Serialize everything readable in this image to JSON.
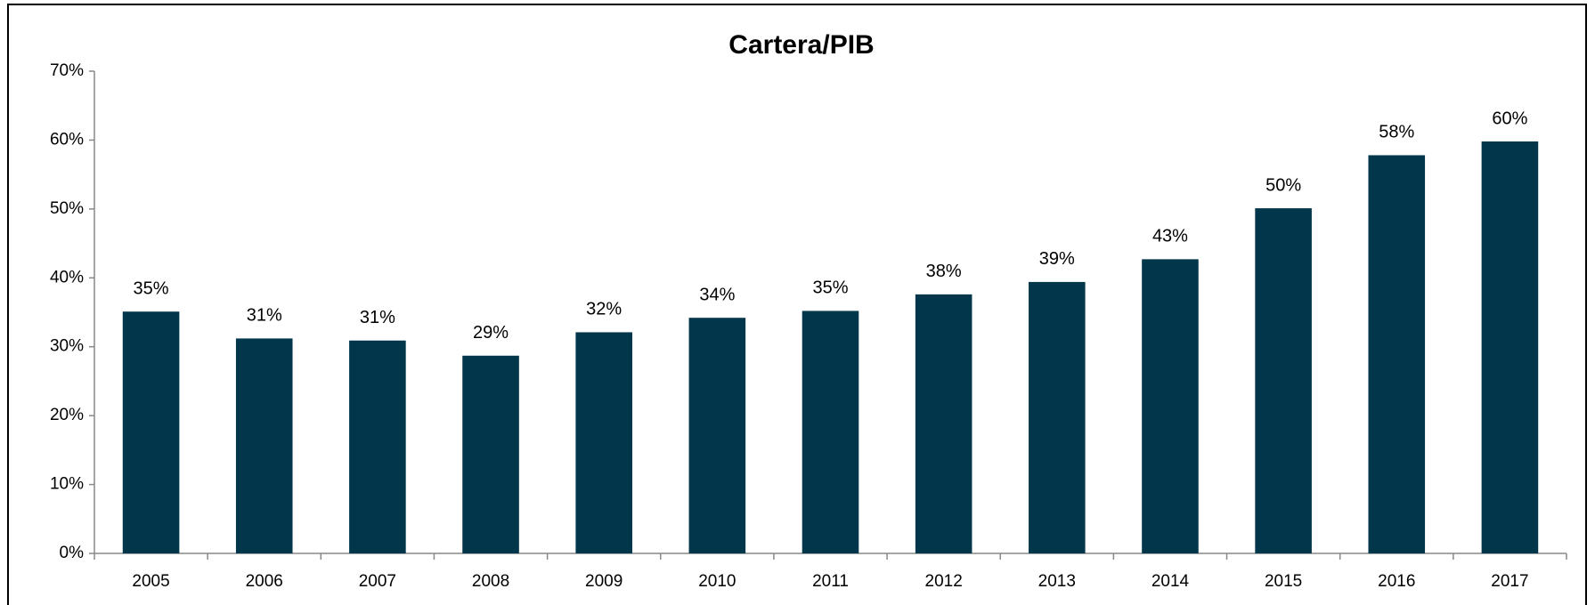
{
  "chart_data": {
    "type": "bar",
    "title": "Cartera/PIB",
    "categories": [
      "2005",
      "2006",
      "2007",
      "2008",
      "2009",
      "2010",
      "2011",
      "2012",
      "2013",
      "2014",
      "2015",
      "2016",
      "2017"
    ],
    "values": [
      35.1,
      31.2,
      30.9,
      28.7,
      32.1,
      34.2,
      35.2,
      37.6,
      39.4,
      42.7,
      50.1,
      57.8,
      59.8
    ],
    "value_labels": [
      "35%",
      "31%",
      "31%",
      "29%",
      "32%",
      "34%",
      "35%",
      "38%",
      "39%",
      "43%",
      "50%",
      "58%",
      "60%"
    ],
    "color": "#02364b",
    "ylim": [
      0,
      70
    ],
    "yticks": [
      {
        "value": 0,
        "label": "0%"
      },
      {
        "value": 10,
        "label": "10%"
      },
      {
        "value": 20,
        "label": "20%"
      },
      {
        "value": 30,
        "label": "30%"
      },
      {
        "value": 40,
        "label": "40%"
      },
      {
        "value": 50,
        "label": "50%"
      },
      {
        "value": 60,
        "label": "60%"
      },
      {
        "value": 70,
        "label": "70%"
      }
    ],
    "grid": false
  }
}
